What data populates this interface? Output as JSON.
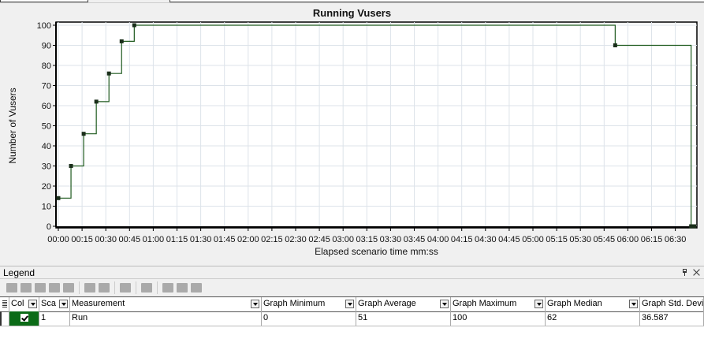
{
  "chart_data": {
    "type": "line",
    "title": "Running Vusers",
    "xlabel": "Elapsed scenario time mm:ss",
    "ylabel": "Number of Vusers",
    "ylim": [
      0,
      100
    ],
    "xlim": [
      "00:00",
      "06:43"
    ],
    "yticks": [
      "0",
      "10",
      "20",
      "30",
      "40",
      "50",
      "60",
      "70",
      "80",
      "90",
      "100"
    ],
    "xticks": [
      "00:00",
      "00:15",
      "00:30",
      "00:45",
      "01:00",
      "01:15",
      "01:30",
      "01:45",
      "02:00",
      "02:15",
      "02:30",
      "02:45",
      "03:00",
      "03:15",
      "03:30",
      "03:45",
      "04:00",
      "04:15",
      "04:30",
      "04:45",
      "05:00",
      "05:15",
      "05:30",
      "05:45",
      "06:00",
      "06:15",
      "06:30"
    ],
    "grid": true,
    "step": "after",
    "series": [
      {
        "name": "Run",
        "color": "#1e5a1e",
        "x": [
          "00:00",
          "00:08",
          "00:16",
          "00:24",
          "00:32",
          "00:40",
          "00:48",
          "05:52",
          "06:40",
          "06:42"
        ],
        "y": [
          14,
          30,
          46,
          62,
          76,
          92,
          100,
          90,
          0,
          0
        ]
      }
    ]
  },
  "legend": {
    "title": "Legend",
    "pin_icon": "pin-icon",
    "close_icon": "close-icon",
    "columns": [
      "Col",
      "Sca",
      "Measurement",
      "Graph Minimum",
      "Graph Average",
      "Graph Maximum",
      "Graph Median",
      "Graph Std. Devi"
    ],
    "rows": [
      {
        "color": "#0b6b17",
        "checked": true,
        "scale": "1",
        "measurement": "Run",
        "min": "0",
        "avg": "51",
        "max": "100",
        "median": "62",
        "std": "36.587"
      }
    ]
  }
}
